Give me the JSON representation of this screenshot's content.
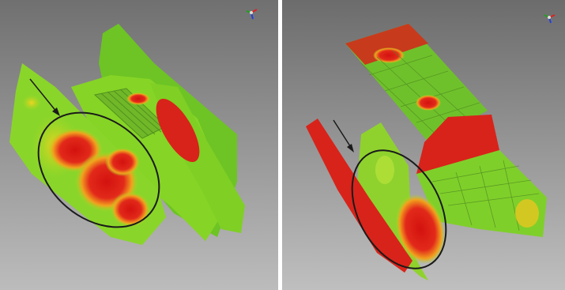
{
  "figure": {
    "panels": [
      {
        "id": "left",
        "description_visible_text": ""
      },
      {
        "id": "right",
        "description_visible_text": ""
      }
    ],
    "colors": {
      "background_top": "#6e6e6e",
      "background_bottom": "#b9b9b9",
      "high": "#d81a12",
      "mid": "#f0c21a",
      "low": "#7ed321",
      "annotation": "#1a1a1a"
    }
  }
}
